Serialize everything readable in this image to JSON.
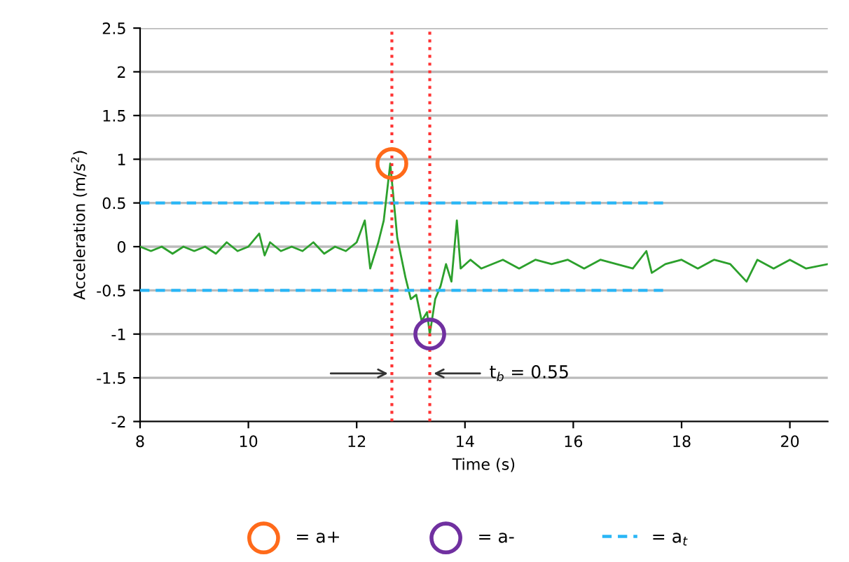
{
  "chart_data": {
    "type": "line",
    "xlabel": "Time (s)",
    "ylabel": "Acceleration (m/s$^{2}$)",
    "xlim": [
      8,
      20.7
    ],
    "xticks": [
      8,
      10,
      12,
      14,
      16,
      18,
      20
    ],
    "ylim": [
      -2,
      2.5
    ],
    "yticks": [
      -2,
      -1.5,
      -1,
      -0.5,
      0,
      0.5,
      1,
      1.5,
      2,
      2.5
    ],
    "grid": "y",
    "legend": "bottom",
    "series": [
      {
        "color": "#2ca02c",
        "x": [
          8,
          8.2,
          8.4,
          8.6,
          8.8,
          9,
          9.2,
          9.4,
          9.6,
          9.8,
          10,
          10.2,
          10.3,
          10.4,
          10.6,
          10.8,
          11,
          11.2,
          11.4,
          11.6,
          11.8,
          12,
          12.15,
          12.25,
          12.4,
          12.5,
          12.62,
          12.75,
          12.9,
          13,
          13.1,
          13.2,
          13.3,
          13.35,
          13.45,
          13.55,
          13.65,
          13.75,
          13.85,
          13.92,
          14.1,
          14.3,
          14.5,
          14.7,
          15,
          15.3,
          15.6,
          15.9,
          16.2,
          16.5,
          16.8,
          17.1,
          17.35,
          17.45,
          17.7,
          18,
          18.3,
          18.6,
          18.9,
          19.2,
          19.4,
          19.7,
          20,
          20.3,
          20.7
        ],
        "values": [
          0,
          -0.05,
          0,
          -0.08,
          0,
          -0.05,
          0,
          -0.08,
          0.05,
          -0.05,
          0,
          0.15,
          -0.1,
          0.05,
          -0.05,
          0,
          -0.05,
          0.05,
          -0.08,
          0,
          -0.05,
          0.05,
          0.3,
          -0.25,
          0.05,
          0.3,
          0.95,
          0.1,
          -0.35,
          -0.6,
          -0.55,
          -0.85,
          -0.75,
          -1.0,
          -0.6,
          -0.45,
          -0.2,
          -0.4,
          0.3,
          -0.25,
          -0.15,
          -0.25,
          -0.2,
          -0.15,
          -0.25,
          -0.15,
          -0.2,
          -0.15,
          -0.25,
          -0.15,
          -0.2,
          -0.25,
          -0.05,
          -0.3,
          -0.2,
          -0.15,
          -0.25,
          -0.15,
          -0.2,
          -0.4,
          -0.15,
          -0.25,
          -0.15,
          -0.25,
          -0.2
        ]
      },
      {
        "type": "scatter",
        "name": "= a+",
        "color": "#ff6a1a",
        "x": [
          12.65
        ],
        "values": [
          0.95
        ]
      },
      {
        "type": "scatter",
        "name": "= a-",
        "color": "#7030a0",
        "x": [
          13.35
        ],
        "values": [
          -1.0
        ]
      },
      {
        "type": "line",
        "name": "= a$_{t}$",
        "color": "#29b6f6",
        "line_style": "dashed",
        "x": [
          8,
          17.7
        ],
        "values": [
          0.5,
          0.5
        ]
      },
      {
        "type": "line",
        "color": "#29b6f6",
        "line_style": "dashed",
        "x": [
          8,
          17.7
        ],
        "values": [
          -0.5,
          -0.5
        ]
      }
    ],
    "ref_lines": [
      {
        "axis": "x",
        "value": 12.65,
        "color": "#ff3333",
        "line_style": "dotted"
      },
      {
        "axis": "x",
        "value": 13.35,
        "color": "#ff3333",
        "line_style": "dotted"
      }
    ],
    "annotations": [
      {
        "text": "t$_{b}$ = 0.55",
        "x": 13.35,
        "y": -1.45
      }
    ]
  }
}
